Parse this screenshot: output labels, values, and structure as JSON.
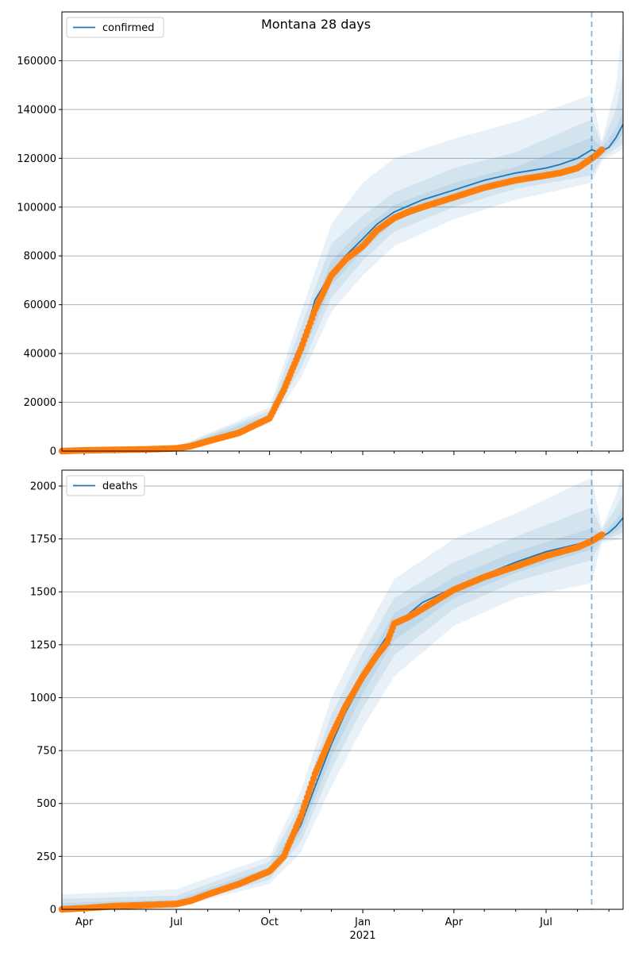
{
  "figure_title": "Montana 28 days",
  "colors": {
    "model": "#1f77b4",
    "band": "#1f77b4",
    "observed": "#ff7f0e",
    "grid": "#b0b0b0",
    "forecast_line": "#1f77b4"
  },
  "chart_data": [
    {
      "type": "line",
      "title": "Montana 28 days",
      "legend": [
        "confirmed"
      ],
      "legend_position": "top-left",
      "xlabel": "",
      "ylabel": "",
      "x_range": [
        "2020-03-10",
        "2021-09-15"
      ],
      "ylim": [
        0,
        180000
      ],
      "y_ticks": [
        0,
        20000,
        40000,
        60000,
        80000,
        100000,
        120000,
        140000,
        160000
      ],
      "grid": "horizontal",
      "forecast_start": "2021-08-15",
      "series": [
        {
          "name": "confirmed",
          "style": "model line",
          "x": [
            "2020-03-10",
            "2020-04-01",
            "2020-05-01",
            "2020-06-01",
            "2020-07-01",
            "2020-08-01",
            "2020-09-01",
            "2020-10-01",
            "2020-10-15",
            "2020-11-01",
            "2020-11-15",
            "2020-12-01",
            "2020-12-15",
            "2021-01-01",
            "2021-01-15",
            "2021-02-01",
            "2021-03-01",
            "2021-04-01",
            "2021-05-01",
            "2021-06-01",
            "2021-07-01",
            "2021-07-15",
            "2021-08-01",
            "2021-08-15",
            "2021-08-22",
            "2021-09-01",
            "2021-09-08",
            "2021-09-15"
          ],
          "values": [
            0,
            200,
            500,
            700,
            1200,
            4000,
            8000,
            14000,
            24000,
            42000,
            62000,
            73000,
            80000,
            87000,
            93000,
            98000,
            103000,
            107000,
            111000,
            114000,
            116000,
            117500,
            120000,
            123500,
            122500,
            124500,
            128500,
            134000
          ]
        },
        {
          "name": "",
          "style": "observed points",
          "x": [
            "2020-03-10",
            "2020-04-01",
            "2020-05-01",
            "2020-06-01",
            "2020-07-01",
            "2020-07-15",
            "2020-08-01",
            "2020-09-01",
            "2020-10-01",
            "2020-10-15",
            "2020-11-01",
            "2020-11-15",
            "2020-12-01",
            "2020-12-15",
            "2021-01-01",
            "2021-01-15",
            "2021-02-01",
            "2021-02-15",
            "2021-03-01",
            "2021-04-01",
            "2021-05-01",
            "2021-06-01",
            "2021-07-01",
            "2021-07-15",
            "2021-08-01",
            "2021-08-10",
            "2021-08-20",
            "2021-08-25"
          ],
          "values": [
            0,
            300,
            500,
            700,
            1100,
            2000,
            4000,
            7500,
            13500,
            25000,
            42000,
            58000,
            72000,
            78500,
            84000,
            90500,
            95500,
            98000,
            100000,
            104000,
            108000,
            111000,
            113000,
            114000,
            116000,
            118500,
            121500,
            123500
          ]
        }
      ],
      "bands": [
        {
          "level": "inner",
          "x": [
            "2020-03-10",
            "2020-07-01",
            "2020-10-01",
            "2020-11-01",
            "2020-12-01",
            "2021-01-01",
            "2021-02-01",
            "2021-04-01",
            "2021-06-01",
            "2021-08-15",
            "2021-08-25",
            "2021-09-08",
            "2021-09-15"
          ],
          "lower": [
            0,
            1100,
            13000,
            38000,
            68000,
            82000,
            94000,
            104000,
            111000,
            118000,
            121500,
            126000,
            130000
          ],
          "upper": [
            0,
            1300,
            15000,
            46000,
            78000,
            91000,
            101000,
            110000,
            116500,
            128500,
            124500,
            132000,
            140000
          ]
        },
        {
          "level": "middle",
          "x": [
            "2020-03-10",
            "2020-07-01",
            "2020-10-01",
            "2020-11-01",
            "2020-12-01",
            "2021-01-01",
            "2021-02-01",
            "2021-04-01",
            "2021-06-01",
            "2021-08-15",
            "2021-08-25",
            "2021-09-08",
            "2021-09-15"
          ],
          "lower": [
            0,
            1000,
            12000,
            34000,
            63000,
            78000,
            90000,
            100000,
            107500,
            113000,
            120000,
            124000,
            126000
          ],
          "upper": [
            0,
            1500,
            16500,
            51000,
            85000,
            96500,
            106000,
            116000,
            122500,
            136000,
            126000,
            140000,
            155000
          ]
        },
        {
          "level": "outer",
          "x": [
            "2020-03-10",
            "2020-07-01",
            "2020-10-01",
            "2020-11-01",
            "2020-12-01",
            "2021-01-01",
            "2021-02-01",
            "2021-04-01",
            "2021-06-01",
            "2021-08-15",
            "2021-08-25",
            "2021-09-08",
            "2021-09-15"
          ],
          "lower": [
            0,
            900,
            11000,
            30000,
            57000,
            72000,
            84000,
            95000,
            103000,
            110000,
            119000,
            122000,
            124000
          ],
          "upper": [
            0,
            1700,
            18000,
            57000,
            93000,
            110000,
            120000,
            128000,
            135000,
            146000,
            127000,
            150000,
            177000
          ]
        }
      ]
    },
    {
      "type": "line",
      "title": "",
      "legend": [
        "deaths"
      ],
      "legend_position": "top-left",
      "xlabel": "",
      "ylabel": "",
      "x_range": [
        "2020-03-10",
        "2021-09-15"
      ],
      "x_ticks": [
        "Apr",
        "Jul",
        "Oct",
        "Jan",
        "Apr",
        "Jul"
      ],
      "x_tick_dates": [
        "2020-04-01",
        "2020-07-01",
        "2020-10-01",
        "2021-01-01",
        "2021-04-01",
        "2021-07-01"
      ],
      "x_year_label": "2021",
      "ylim": [
        0,
        2075
      ],
      "y_ticks": [
        0,
        250,
        500,
        750,
        1000,
        1250,
        1500,
        1750,
        2000
      ],
      "grid": "horizontal",
      "forecast_start": "2021-08-15",
      "series": [
        {
          "name": "deaths",
          "style": "model line",
          "x": [
            "2020-03-10",
            "2020-04-01",
            "2020-05-01",
            "2020-06-01",
            "2020-07-01",
            "2020-08-01",
            "2020-09-01",
            "2020-10-01",
            "2020-10-15",
            "2020-11-01",
            "2020-11-15",
            "2020-12-01",
            "2020-12-15",
            "2021-01-01",
            "2021-01-15",
            "2021-02-01",
            "2021-03-01",
            "2021-04-01",
            "2021-05-01",
            "2021-06-01",
            "2021-07-01",
            "2021-08-01",
            "2021-08-15",
            "2021-08-25",
            "2021-09-01",
            "2021-09-08",
            "2021-09-15"
          ],
          "values": [
            0,
            5,
            15,
            20,
            30,
            60,
            110,
            180,
            250,
            400,
            580,
            780,
            930,
            1080,
            1220,
            1340,
            1450,
            1520,
            1580,
            1640,
            1690,
            1725,
            1750,
            1760,
            1780,
            1810,
            1850
          ]
        },
        {
          "name": "",
          "style": "observed points",
          "x": [
            "2020-03-10",
            "2020-04-01",
            "2020-05-01",
            "2020-06-01",
            "2020-07-01",
            "2020-07-15",
            "2020-08-01",
            "2020-09-01",
            "2020-10-01",
            "2020-10-15",
            "2020-11-01",
            "2020-11-15",
            "2020-12-01",
            "2020-12-15",
            "2021-01-01",
            "2021-01-15",
            "2021-01-25",
            "2021-02-01",
            "2021-02-15",
            "2021-03-01",
            "2021-04-01",
            "2021-05-01",
            "2021-06-01",
            "2021-07-01",
            "2021-08-01",
            "2021-08-15",
            "2021-08-25"
          ],
          "values": [
            0,
            5,
            15,
            20,
            25,
            40,
            70,
            120,
            180,
            250,
            440,
            640,
            820,
            960,
            1100,
            1200,
            1260,
            1350,
            1380,
            1420,
            1510,
            1570,
            1620,
            1670,
            1710,
            1740,
            1770
          ]
        }
      ],
      "bands": [
        {
          "level": "inner",
          "x": [
            "2020-03-10",
            "2020-07-01",
            "2020-10-01",
            "2020-11-01",
            "2020-12-01",
            "2021-01-01",
            "2021-02-01",
            "2021-04-01",
            "2021-06-01",
            "2021-08-15",
            "2021-08-25",
            "2021-09-08",
            "2021-09-15"
          ],
          "lower": [
            0,
            20,
            160,
            360,
            720,
            1020,
            1270,
            1470,
            1590,
            1700,
            1745,
            1785,
            1810
          ],
          "upper": [
            30,
            45,
            200,
            440,
            850,
            1140,
            1400,
            1570,
            1690,
            1800,
            1775,
            1840,
            1890
          ]
        },
        {
          "level": "middle",
          "x": [
            "2020-03-10",
            "2020-07-01",
            "2020-10-01",
            "2020-11-01",
            "2020-12-01",
            "2021-01-01",
            "2021-02-01",
            "2021-04-01",
            "2021-06-01",
            "2021-08-15",
            "2021-08-25",
            "2021-09-08",
            "2021-09-15"
          ],
          "lower": [
            0,
            15,
            140,
            320,
            660,
            950,
            1200,
            1420,
            1550,
            1650,
            1740,
            1765,
            1780
          ],
          "upper": [
            50,
            65,
            225,
            500,
            920,
            1210,
            1470,
            1640,
            1760,
            1900,
            1790,
            1900,
            1960
          ]
        },
        {
          "level": "outer",
          "x": [
            "2020-03-10",
            "2020-07-01",
            "2020-10-01",
            "2020-11-01",
            "2020-12-01",
            "2021-01-01",
            "2021-02-01",
            "2021-04-01",
            "2021-06-01",
            "2021-08-15",
            "2021-08-25",
            "2021-09-08",
            "2021-09-15"
          ],
          "lower": [
            0,
            10,
            120,
            270,
            580,
            860,
            1100,
            1340,
            1470,
            1540,
            1735,
            1745,
            1760
          ],
          "upper": [
            70,
            95,
            250,
            560,
            1000,
            1290,
            1560,
            1750,
            1870,
            2040,
            1800,
            1960,
            2060
          ]
        }
      ]
    }
  ]
}
